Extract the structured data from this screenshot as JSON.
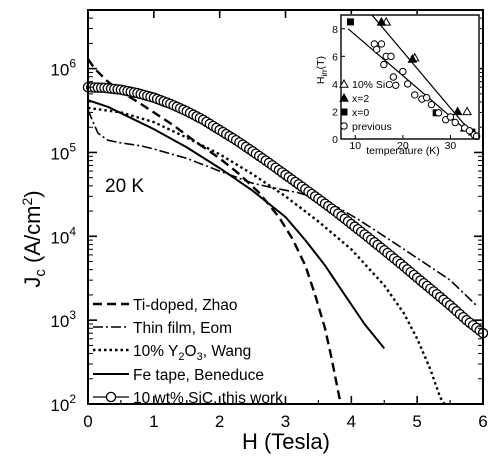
{
  "chart_data": [
    {
      "type": "line",
      "xlabel": "H (Tesla)",
      "ylabel": "J_c (A/cm²)",
      "ylabel_parts": {
        "main": "J",
        "sub": "c",
        "unit_open": " (A/cm",
        "sup": "2",
        "unit_close": ")"
      },
      "annotation": "20 K",
      "xlim": [
        0,
        6
      ],
      "ylim": [
        100,
        5000000
      ],
      "yscale": "log",
      "x_ticks": [
        "0",
        "1",
        "2",
        "3",
        "4",
        "5",
        "6"
      ],
      "x_tick_values": [
        0,
        1,
        2,
        3,
        4,
        5,
        6
      ],
      "y_ticks": [
        {
          "value": 100,
          "base": "10",
          "exp": "2"
        },
        {
          "value": 1000,
          "base": "10",
          "exp": "3"
        },
        {
          "value": 10000,
          "base": "10",
          "exp": "4"
        },
        {
          "value": 100000,
          "base": "10",
          "exp": "5"
        },
        {
          "value": 1000000,
          "base": "10",
          "exp": "6"
        }
      ],
      "grid": false,
      "legend_position": "bottom-left",
      "series": [
        {
          "name": "Ti-doped, Zhao",
          "label_html": [
            "Ti-doped, Zhao"
          ],
          "style": "dashed",
          "x": [
            0.0,
            0.1,
            0.3,
            0.5,
            0.8,
            1.0,
            1.3,
            1.6,
            2.0,
            2.3,
            2.6,
            2.9,
            3.1,
            3.3,
            3.45,
            3.6,
            3.7,
            3.8,
            3.85
          ],
          "y": [
            1300000,
            1000000,
            700000,
            530000,
            380000,
            300000,
            210000,
            140000,
            85000,
            55000,
            33000,
            17000,
            9500,
            4500,
            2000,
            800,
            350,
            140,
            90
          ]
        },
        {
          "name": "Thin film, Eom",
          "label_html": [
            "Thin film, Eom"
          ],
          "style": "dash-dot",
          "x": [
            0.0,
            0.15,
            0.3,
            0.5,
            0.8,
            1.0,
            1.5,
            2.0,
            2.5,
            2.8,
            3.2,
            3.5,
            3.8,
            4.1,
            4.5,
            5.0,
            5.5,
            5.9
          ],
          "y": [
            320000,
            170000,
            140000,
            130000,
            120000,
            110000,
            85000,
            60000,
            43000,
            38000,
            33000,
            28000,
            22000,
            16000,
            10000,
            5500,
            3000,
            1500
          ]
        },
        {
          "name": "10% Y2O3, Wang",
          "label_html": [
            "10% Y",
            "2",
            "O",
            "3",
            ", Wang"
          ],
          "style": "dotted",
          "x": [
            0.0,
            0.5,
            1.0,
            1.5,
            2.0,
            2.5,
            3.0,
            3.5,
            4.0,
            4.5,
            4.8,
            5.0,
            5.2,
            5.35,
            5.45
          ],
          "y": [
            340000,
            300000,
            230000,
            150000,
            95000,
            55000,
            30000,
            15000,
            7000,
            2600,
            1200,
            600,
            260,
            120,
            90
          ]
        },
        {
          "name": "Fe tape, Beneduce",
          "label_html": [
            "Fe tape, Beneduce"
          ],
          "style": "solid",
          "x": [
            0.0,
            0.3,
            0.6,
            1.0,
            1.5,
            2.0,
            2.5,
            3.0,
            3.3,
            3.6,
            3.9,
            4.2,
            4.5
          ],
          "y": [
            420000,
            350000,
            270000,
            190000,
            115000,
            65000,
            35000,
            17000,
            9000,
            4500,
            2000,
            900,
            460
          ]
        },
        {
          "name": "10 wt% SiC, this work",
          "label_html": [
            "10 wt% SiC, this work"
          ],
          "style": "solid-circles",
          "x": [
            0.0,
            0.25,
            0.5,
            0.75,
            1.0,
            1.25,
            1.5,
            1.75,
            2.0,
            2.25,
            2.5,
            2.75,
            3.0,
            3.25,
            3.5,
            3.75,
            4.0,
            4.25,
            4.5,
            4.75,
            5.0,
            5.25,
            5.5,
            5.75,
            6.0
          ],
          "y": [
            600000,
            590000,
            560000,
            510000,
            450000,
            380000,
            310000,
            245000,
            185000,
            140000,
            103000,
            75000,
            54000,
            39000,
            28000,
            20000,
            14000,
            9800,
            6800,
            4700,
            3200,
            2200,
            1500,
            1000,
            700
          ]
        }
      ]
    },
    {
      "type": "scatter",
      "xlabel": "temperature (K)",
      "ylabel": "H_irr(T)",
      "ylabel_parts": {
        "main": "H",
        "sub": "irr",
        "rest": "(T)"
      },
      "xlim": [
        7,
        36
      ],
      "ylim": [
        0,
        9
      ],
      "x_ticks": [
        "10",
        "20",
        "30"
      ],
      "x_tick_values": [
        10,
        20,
        30
      ],
      "y_ticks": [
        "0",
        "2",
        "4",
        "6",
        "8"
      ],
      "y_tick_values": [
        0,
        2,
        4,
        6,
        8
      ],
      "legend_position": "bottom-left",
      "series": [
        {
          "name": "10% SiC",
          "marker": "triangle-open",
          "x": [
            16.5,
            22.5,
            33.5
          ],
          "y": [
            8.5,
            5.9,
            2.0
          ]
        },
        {
          "name": "x=2",
          "marker": "triangle-filled",
          "x": [
            15.5,
            22.0,
            31.5,
            33.0
          ],
          "y": [
            8.5,
            5.8,
            2.0,
            0.8
          ]
        },
        {
          "name": "x=0",
          "marker": "square-filled",
          "x": [
            9.0,
            27.0,
            34.5
          ],
          "y": [
            8.5,
            1.9,
            0.5
          ]
        },
        {
          "name": "previous",
          "marker": "circle-open",
          "x": [
            14.0,
            14.5,
            15.5,
            16.5,
            16.0,
            17.5,
            18.5,
            20.0,
            22.5,
            24.0,
            26.0,
            27.5,
            29.0,
            31.0,
            33.0,
            35.0,
            18.0,
            21.0,
            25.0,
            30.0,
            34.0,
            35.5
          ],
          "y": [
            6.9,
            6.5,
            6.9,
            6.0,
            5.4,
            6.0,
            3.9,
            4.9,
            3.2,
            2.9,
            2.5,
            1.9,
            1.4,
            1.2,
            0.8,
            0.3,
            4.5,
            4.0,
            3.0,
            1.6,
            0.6,
            0.2
          ]
        }
      ],
      "fit_lines": [
        {
          "x": [
            8.5,
            35.5
          ],
          "y": [
            8.0,
            0.0
          ]
        },
        {
          "x": [
            13.5,
            35.5
          ],
          "y": [
            9.0,
            0.0
          ]
        }
      ]
    }
  ]
}
